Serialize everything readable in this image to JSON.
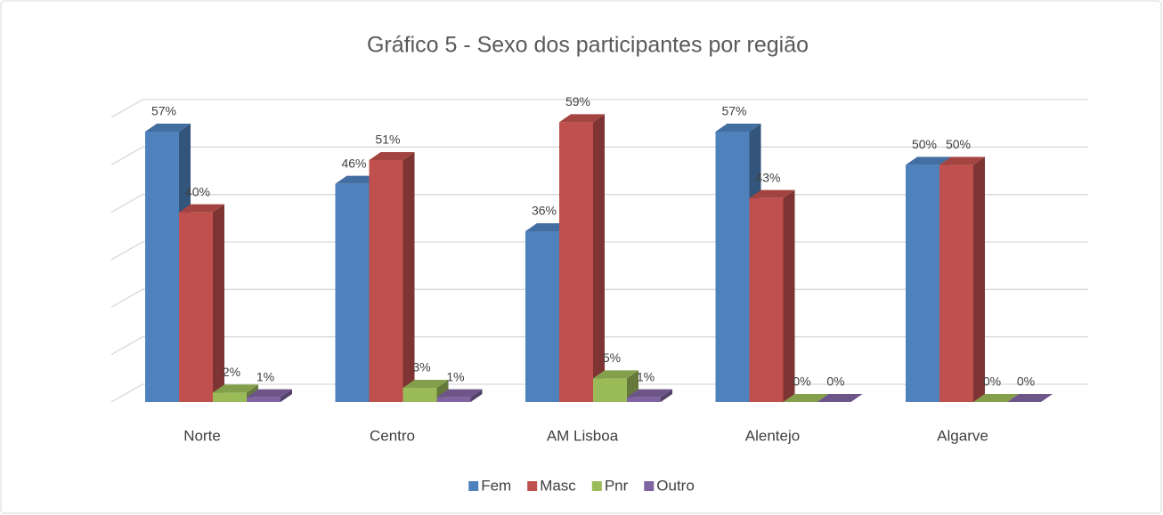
{
  "chart_data": {
    "type": "bar3d",
    "title": "Gráfico 5 - Sexo dos participantes por região",
    "categories": [
      "Norte",
      "Centro",
      "AM Lisboa",
      "Alentejo",
      "Algarve"
    ],
    "series": [
      {
        "name": "Fem",
        "color": "#4f81bd",
        "values": [
          57,
          46,
          36,
          57,
          50
        ],
        "value_labels": [
          "57%",
          "46%",
          "36%",
          "57%",
          "50%"
        ]
      },
      {
        "name": "Masc",
        "color": "#c0504d",
        "values": [
          40,
          51,
          59,
          43,
          50
        ],
        "value_labels": [
          "40%",
          "51%",
          "59%",
          "43%",
          "50%"
        ]
      },
      {
        "name": "Pnr",
        "color": "#9bbb59",
        "values": [
          2,
          3,
          5,
          0,
          0
        ],
        "value_labels": [
          "2%",
          "3%",
          "5%",
          "0%",
          "0%"
        ]
      },
      {
        "name": "Outro",
        "color": "#8064a2",
        "values": [
          1,
          1,
          1,
          0,
          0
        ],
        "value_labels": [
          "1%",
          "1%",
          "1%",
          "0%",
          "0%"
        ]
      }
    ],
    "ylim": [
      0,
      60
    ],
    "yticks": [
      0,
      10,
      20,
      30,
      40,
      50,
      60
    ],
    "grid": true,
    "legend": "bottom"
  }
}
